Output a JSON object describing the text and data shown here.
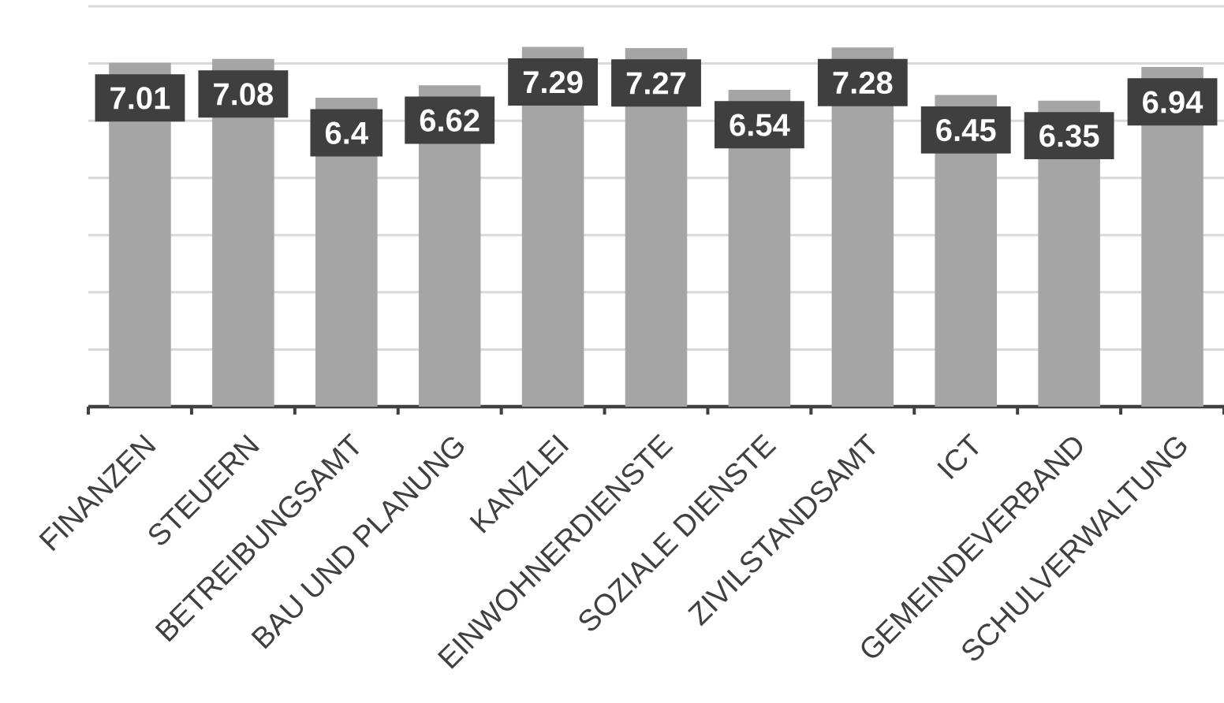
{
  "chart_data": {
    "type": "bar",
    "categories": [
      "FINANZEN",
      "STEUERN",
      "BETREIBUNGSAMT",
      "BAU UND PLANUNG",
      "KANZLEI",
      "EINWOHNERDIENSTE",
      "SOZIALE DIENSTE",
      "ZIVILSTANDSAMT",
      "ICT",
      "GEMEINDEVERBAND",
      "SCHULVERWALTUNG"
    ],
    "values": [
      7.01,
      7.08,
      6.4,
      6.62,
      7.29,
      7.27,
      6.54,
      7.28,
      6.45,
      6.35,
      6.94
    ],
    "color": "#a5a5a5",
    "data_labels": true,
    "ylim": [
      1,
      8
    ],
    "yticks": [
      {
        "value": 2,
        "label": null
      },
      {
        "value": 3,
        "label": null
      },
      {
        "value": 4,
        "label": null
      },
      {
        "value": 5,
        "label": null
      },
      {
        "value": 6,
        "label": null
      },
      {
        "value": 7,
        "label": null
      },
      {
        "value": 8,
        "label": null
      }
    ],
    "grid": "y",
    "tick_labels": "x"
  }
}
